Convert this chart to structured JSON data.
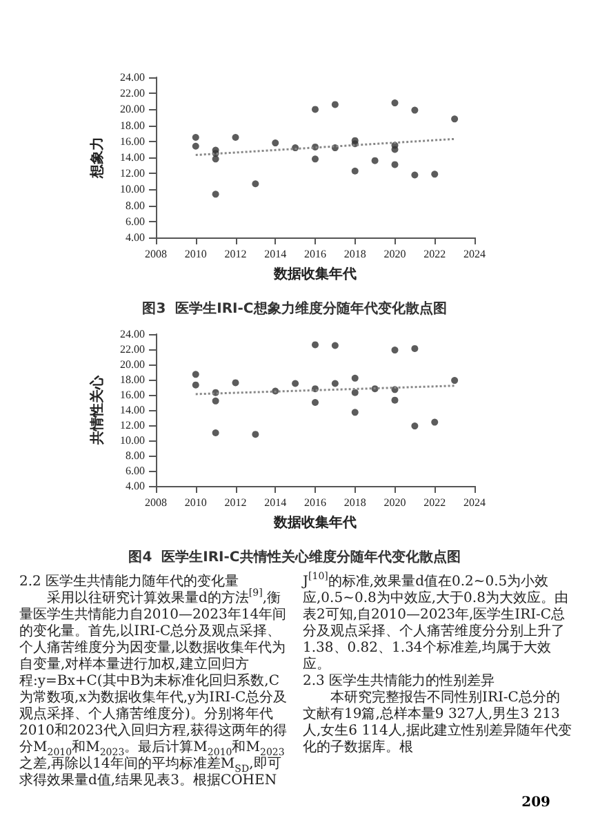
{
  "chart_data": [
    {
      "type": "scatter",
      "title": "图3  医学生IRI-C想象力维度分随年代变化散点图",
      "xlabel": "数据收集年代",
      "ylabel": "想象力",
      "xlim": [
        2008,
        2024
      ],
      "xticks": [
        2008,
        2010,
        2012,
        2014,
        2016,
        2018,
        2020,
        2022,
        2024
      ],
      "ylim": [
        4,
        24
      ],
      "yticks": [
        {
          "value": 4,
          "label": "4.00"
        },
        {
          "value": 6,
          "label": "6.00"
        },
        {
          "value": 8,
          "label": "8.00"
        },
        {
          "value": 10,
          "label": "10.00"
        },
        {
          "value": 12,
          "label": "12.00"
        },
        {
          "value": 14,
          "label": "14.00"
        },
        {
          "value": 16,
          "label": "16.00"
        },
        {
          "value": 18,
          "label": "18.00"
        },
        {
          "value": 20,
          "label": "20.00"
        },
        {
          "value": 22,
          "label": "22.00"
        },
        {
          "value": 24,
          "label": "24.00"
        }
      ],
      "grid": false,
      "series": [
        {
          "type": "scatter",
          "marker": "circle",
          "color": "#333333",
          "x": [
            2010,
            2010,
            2011,
            2011,
            2011,
            2011,
            2012,
            2013,
            2014,
            2015,
            2016,
            2016,
            2016,
            2017,
            2017,
            2018,
            2018,
            2018,
            2019,
            2020,
            2020,
            2020,
            2020,
            2021,
            2021,
            2022,
            2023
          ],
          "values": [
            16.5,
            15.4,
            14.9,
            14.5,
            13.8,
            9.4,
            16.5,
            10.7,
            15.8,
            15.2,
            20.0,
            15.3,
            13.8,
            20.6,
            15.2,
            16.1,
            15.7,
            12.3,
            13.6,
            20.8,
            15.5,
            15.0,
            13.1,
            19.9,
            11.8,
            11.9,
            18.8
          ]
        },
        {
          "type": "line",
          "marker": "none",
          "line_style": "dotted",
          "color": "#888888",
          "x": [
            2010,
            2023
          ],
          "values": [
            14.3,
            16.3
          ]
        }
      ]
    },
    {
      "type": "scatter",
      "title": "图4  医学生IRI-C共情性关心维度分随年代变化散点图",
      "xlabel": "数据收集年代",
      "ylabel": "共情性关心",
      "xlim": [
        2008,
        2024
      ],
      "xticks": [
        2008,
        2010,
        2012,
        2014,
        2016,
        2018,
        2020,
        2022,
        2024
      ],
      "ylim": [
        4,
        24
      ],
      "yticks": [
        {
          "value": 4,
          "label": "4.00"
        },
        {
          "value": 6,
          "label": "6.00"
        },
        {
          "value": 8,
          "label": "8.00"
        },
        {
          "value": 10,
          "label": "10.00"
        },
        {
          "value": 12,
          "label": "12.00"
        },
        {
          "value": 14,
          "label": "14.00"
        },
        {
          "value": 16,
          "label": "16.00"
        },
        {
          "value": 18,
          "label": "18.00"
        },
        {
          "value": 20,
          "label": "20.00"
        },
        {
          "value": 22,
          "label": "22.00"
        },
        {
          "value": 24,
          "label": "24.00"
        }
      ],
      "grid": false,
      "series": [
        {
          "type": "scatter",
          "marker": "circle",
          "color": "#333333",
          "x": [
            2010,
            2010,
            2011,
            2011,
            2011,
            2012,
            2013,
            2014,
            2015,
            2016,
            2016,
            2016,
            2017,
            2017,
            2018,
            2018,
            2018,
            2019,
            2020,
            2020,
            2020,
            2021,
            2021,
            2022,
            2023
          ],
          "values": [
            18.7,
            17.3,
            16.3,
            15.2,
            11.0,
            17.6,
            10.8,
            16.5,
            17.5,
            22.6,
            16.8,
            15.0,
            22.5,
            17.5,
            18.2,
            16.3,
            13.7,
            16.8,
            21.9,
            16.7,
            15.3,
            22.1,
            11.9,
            12.4,
            17.9
          ]
        },
        {
          "type": "line",
          "marker": "none",
          "line_style": "dotted",
          "color": "#888888",
          "x": [
            2010,
            2023
          ],
          "values": [
            16.1,
            17.2
          ]
        }
      ],
      "annotations": [
        "2.2  医学生共情能力随年代的变化量",
        "采用以往研究计算效果量d的方法$^{[9]}$,衡量医学生共情能力自2010—2023年14年间的变化量。首先,以IRI-C总分及观点采择、个人痛苦维度分为因变量,以数据收集年代为自变量,对样本量进行加权,建立回归方程:y=Bx+C(其中B为未标准化回归系数,C为常数项,x为数据收集年代,y为IRI-C总分及观点采择、个人痛苦维度分)。分别将年代2010和2023代入回归方程,获得这两年的得分M$_{2010}$和M$_{2023}$。最后计算M$_{2010}$和M$_{2023}$之差,再除以14年间的平均标准差M$_{SD}$,即可求得效果量d值,结果见表3。根据COHEN J$^{[10]}$的标准,效果量d值在0.2~0.5为小效应,0.5~0.8为中效应,大于0.8为大效应。由表2可知,自2010—2023年,医学生IRI-C总分及观点采择、个人痛苦维度分分别上升了1.38、0.82、1.34个标准差,均属于大效应。",
        "2.3  医学生共情能力的性别差异",
        "本研究完整报告不同性别IRI-C总分的文献有19篇,总样本量9 327人,男生3 213人,女生6 114人,据此建立性别差异随年代变化的子数据库。根",
        "209"
      ]
    }
  ]
}
